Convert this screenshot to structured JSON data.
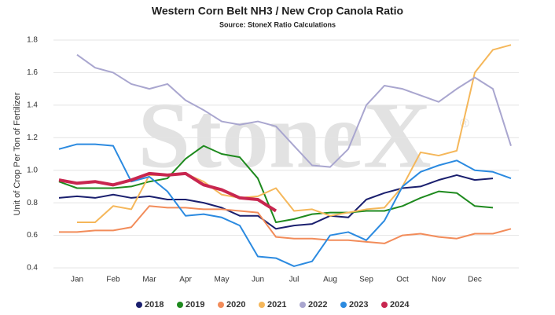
{
  "chart_data": {
    "type": "line",
    "title": "Western Corn Belt NH3 / New Crop Canola Ratio",
    "subtitle": "Source: StoneX Ratio Calculations",
    "watermark": "StoneX",
    "watermark_mark": "®",
    "y_label": "Unit of Crop Per Ton of Fertilizer",
    "categories": [
      null,
      "Jan",
      null,
      "Feb",
      null,
      "Mar",
      null,
      "Apr",
      null,
      "May",
      null,
      "Jun",
      null,
      "Jul",
      null,
      "Aug",
      null,
      "Sep",
      null,
      "Oct",
      null,
      "Nov",
      null,
      "Dec",
      null,
      null
    ],
    "ylim": [
      0.4,
      1.8
    ],
    "yticks": [
      0.4,
      0.6,
      0.8,
      {
        "value": 1.0,
        "label": "1.0"
      },
      1.2,
      1.4,
      1.6,
      1.8
    ],
    "grid": true,
    "legend": "bottom",
    "series": [
      {
        "name": "2018",
        "color": "#1a1f6e",
        "values": [
          0.83,
          0.84,
          0.83,
          0.85,
          0.83,
          0.84,
          0.82,
          0.82,
          0.8,
          0.77,
          0.72,
          0.72,
          0.64,
          0.66,
          0.67,
          0.72,
          0.71,
          0.82,
          0.86,
          0.89,
          0.9,
          0.94,
          0.97,
          0.94,
          0.95,
          null
        ]
      },
      {
        "name": "2019",
        "color": "#1e8a1e",
        "values": [
          0.93,
          0.89,
          0.89,
          0.89,
          0.9,
          0.93,
          0.95,
          1.07,
          1.15,
          1.1,
          1.08,
          0.95,
          0.68,
          0.7,
          0.73,
          0.74,
          0.74,
          0.75,
          0.75,
          0.78,
          0.83,
          0.87,
          0.86,
          0.78,
          0.77,
          null
        ]
      },
      {
        "name": "2020",
        "color": "#f28c5a",
        "values": [
          0.62,
          0.62,
          0.63,
          0.63,
          0.65,
          0.78,
          0.77,
          0.77,
          0.76,
          0.76,
          0.75,
          0.74,
          0.59,
          0.58,
          0.58,
          0.57,
          0.57,
          0.56,
          0.55,
          0.6,
          0.61,
          0.59,
          0.58,
          0.61,
          0.61,
          0.64
        ]
      },
      {
        "name": "2021",
        "color": "#f5b75a",
        "values": [
          null,
          0.68,
          0.68,
          0.78,
          0.76,
          0.97,
          0.97,
          0.98,
          0.93,
          0.85,
          0.83,
          0.84,
          0.89,
          0.75,
          0.76,
          0.72,
          0.74,
          0.76,
          0.77,
          0.9,
          1.11,
          1.09,
          1.12,
          1.6,
          1.74,
          1.77
        ]
      },
      {
        "name": "2022",
        "color": "#a9a6cf",
        "values": [
          null,
          1.71,
          1.63,
          1.6,
          1.53,
          1.5,
          1.53,
          1.43,
          1.37,
          1.3,
          1.28,
          1.3,
          1.27,
          1.15,
          1.03,
          1.02,
          1.13,
          1.4,
          1.52,
          1.5,
          1.46,
          1.42,
          1.5,
          1.57,
          1.5,
          1.15
        ]
      },
      {
        "name": "2023",
        "color": "#2b8ae0",
        "values": [
          1.13,
          1.16,
          1.16,
          1.15,
          0.93,
          0.96,
          0.87,
          0.72,
          0.73,
          0.71,
          0.66,
          0.47,
          0.46,
          0.41,
          0.44,
          0.6,
          0.62,
          0.57,
          0.69,
          0.9,
          0.99,
          1.03,
          1.06,
          1.0,
          0.99,
          0.95
        ]
      },
      {
        "name": "2024",
        "color": "#c8264f",
        "values": [
          0.94,
          0.92,
          0.93,
          0.91,
          0.94,
          0.98,
          0.97,
          0.98,
          0.91,
          0.88,
          0.83,
          0.82,
          0.75,
          null,
          null,
          null,
          null,
          null,
          null,
          null,
          null,
          null,
          null,
          null,
          null,
          null
        ]
      }
    ]
  }
}
